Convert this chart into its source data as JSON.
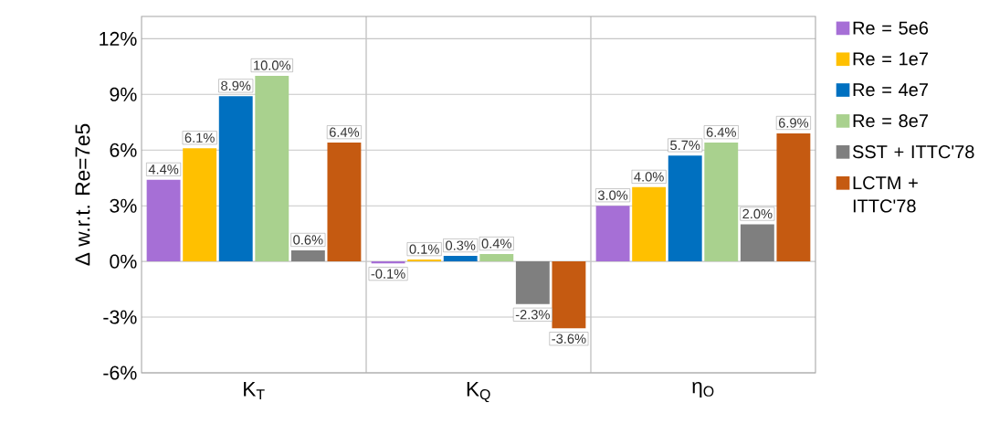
{
  "chart_data": {
    "type": "bar",
    "ylabel": "Δ w.r.t. Re=7e5",
    "categories": [
      "K$_{T}$",
      "K$_{Q}$",
      "η$_{O}$"
    ],
    "series": [
      {
        "name": "Re = 5e6",
        "color": "#a66fd6",
        "values": [
          4.4,
          -0.1,
          3.0
        ],
        "value_labels": [
          "4.4%",
          "-0.1%",
          "3.0%"
        ]
      },
      {
        "name": "Re = 1e7",
        "color": "#ffc000",
        "values": [
          6.1,
          0.1,
          4.0
        ],
        "value_labels": [
          "6.1%",
          "0.1%",
          "4.0%"
        ]
      },
      {
        "name": "Re = 4e7",
        "color": "#0070c0",
        "values": [
          8.9,
          0.3,
          5.7
        ],
        "value_labels": [
          "8.9%",
          "0.3%",
          "5.7%"
        ]
      },
      {
        "name": "Re = 8e7",
        "color": "#a9d18e",
        "values": [
          10.0,
          0.4,
          6.4
        ],
        "value_labels": [
          "10.0%",
          "0.4%",
          "6.4%"
        ]
      },
      {
        "name": "SST + ITTC'78",
        "color": "#7f7f7f",
        "values": [
          0.6,
          -2.3,
          2.0
        ],
        "value_labels": [
          "0.6%",
          "-2.3%",
          "2.0%"
        ]
      },
      {
        "name": "LCTM + ITTC'78",
        "color": "#c55a11",
        "values": [
          6.4,
          -3.6,
          6.9
        ],
        "value_labels": [
          "6.4%",
          "-3.6%",
          "6.9%"
        ]
      }
    ],
    "ylim": [
      -6,
      13.2
    ],
    "yticks": [
      {
        "value": -6,
        "label": "-6%"
      },
      {
        "value": -3,
        "label": "-3%"
      },
      {
        "value": 0,
        "label": "0%"
      },
      {
        "value": 3,
        "label": "3%"
      },
      {
        "value": 6,
        "label": "6%"
      },
      {
        "value": 9,
        "label": "9%"
      },
      {
        "value": 12,
        "label": "12%"
      }
    ],
    "grid": true,
    "legend": "right"
  }
}
